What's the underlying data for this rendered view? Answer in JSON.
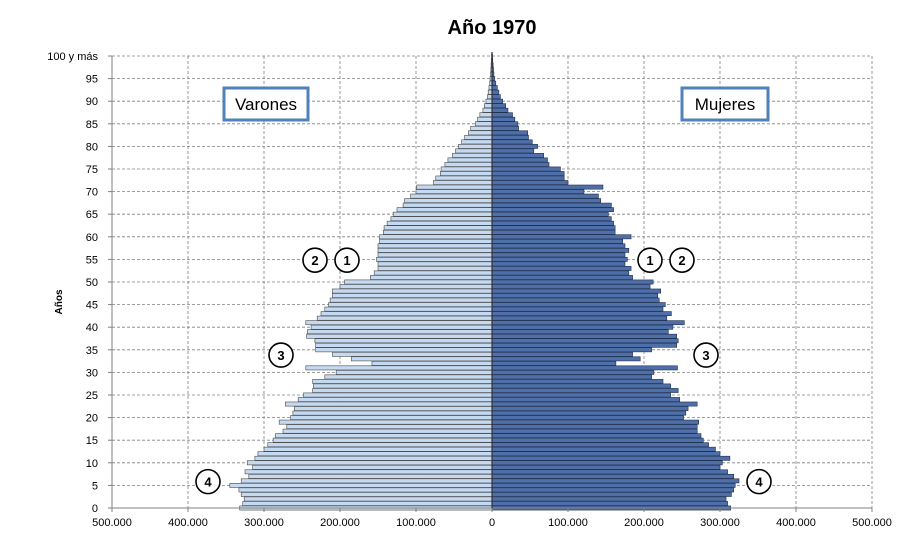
{
  "chart_data": {
    "type": "bar",
    "orientation": "horizontal-population-pyramid",
    "title": "Año 1970",
    "ylabel": "Años",
    "xlim": [
      -500000,
      500000
    ],
    "ylim": [
      0,
      100
    ],
    "grid": true,
    "x_ticks": [
      -500000,
      -400000,
      -300000,
      -200000,
      -100000,
      0,
      100000,
      200000,
      300000,
      400000,
      500000
    ],
    "x_tick_labels": [
      "500.000",
      "400.000",
      "300.000",
      "200.000",
      "100.000",
      "0",
      "100.000",
      "200.000",
      "300.000",
      "400.000",
      "500.000"
    ],
    "y_ticks": [
      0,
      5,
      10,
      15,
      20,
      25,
      30,
      35,
      40,
      45,
      50,
      55,
      60,
      65,
      70,
      75,
      80,
      85,
      90,
      95,
      100
    ],
    "y_tick_labels": [
      "0",
      "5",
      "10",
      "15",
      "20",
      "25",
      "30",
      "35",
      "40",
      "45",
      "50",
      "55",
      "60",
      "65",
      "70",
      "75",
      "80",
      "85",
      "90",
      "95",
      "100 y más"
    ],
    "ages": [
      0,
      1,
      2,
      3,
      4,
      5,
      6,
      7,
      8,
      9,
      10,
      11,
      12,
      13,
      14,
      15,
      16,
      17,
      18,
      19,
      20,
      21,
      22,
      23,
      24,
      25,
      26,
      27,
      28,
      29,
      30,
      31,
      32,
      33,
      34,
      35,
      36,
      37,
      38,
      39,
      40,
      41,
      42,
      43,
      44,
      45,
      46,
      47,
      48,
      49,
      50,
      51,
      52,
      53,
      54,
      55,
      56,
      57,
      58,
      59,
      60,
      61,
      62,
      63,
      64,
      65,
      66,
      67,
      68,
      69,
      70,
      71,
      72,
      73,
      74,
      75,
      76,
      77,
      78,
      79,
      80,
      81,
      82,
      83,
      84,
      85,
      86,
      87,
      88,
      89,
      90,
      91,
      92,
      93,
      94,
      95,
      96,
      97,
      98,
      99,
      100
    ],
    "series": [
      {
        "name": "Varones",
        "color": "#c5d9f1",
        "values": [
          332000,
          328000,
          326000,
          330000,
          333000,
          345000,
          330000,
          320000,
          325000,
          315000,
          322000,
          312000,
          308000,
          300000,
          295000,
          288000,
          285000,
          275000,
          270000,
          280000,
          265000,
          262000,
          260000,
          272000,
          255000,
          248000,
          236000,
          235000,
          236000,
          220000,
          205000,
          245000,
          158000,
          185000,
          210000,
          232000,
          232000,
          233000,
          244000,
          243000,
          238000,
          245000,
          230000,
          225000,
          220000,
          215000,
          213000,
          210000,
          210000,
          200000,
          194000,
          160000,
          155000,
          150000,
          150000,
          152000,
          150000,
          150000,
          150000,
          148000,
          148000,
          143000,
          142000,
          138000,
          133000,
          130000,
          125000,
          117000,
          115000,
          107000,
          100000,
          99000,
          77000,
          74000,
          68000,
          67000,
          62000,
          58000,
          52000,
          48000,
          44000,
          40000,
          36000,
          31000,
          28000,
          22000,
          19000,
          16000,
          12000,
          10000,
          8000,
          6000,
          5000,
          4000,
          3000,
          2500,
          2000,
          1500,
          1200,
          800,
          600
        ]
      },
      {
        "name": "Mujeres",
        "color": "#4f6fa8",
        "values": [
          314000,
          310000,
          308000,
          315000,
          318000,
          320000,
          325000,
          318000,
          310000,
          300000,
          303000,
          313000,
          300000,
          294000,
          285000,
          278000,
          275000,
          270000,
          270000,
          272000,
          252000,
          255000,
          258000,
          270000,
          247000,
          235000,
          245000,
          235000,
          225000,
          210000,
          213000,
          244000,
          163000,
          195000,
          185000,
          210000,
          243000,
          245000,
          243000,
          232000,
          238000,
          253000,
          230000,
          236000,
          225000,
          228000,
          220000,
          218000,
          222000,
          208000,
          212000,
          185000,
          180000,
          183000,
          175000,
          178000,
          175000,
          180000,
          175000,
          172000,
          183000,
          162000,
          162000,
          160000,
          157000,
          153000,
          160000,
          157000,
          143000,
          140000,
          121000,
          146000,
          100000,
          95000,
          95000,
          90000,
          75000,
          73000,
          68000,
          55000,
          60000,
          53000,
          48000,
          47000,
          35000,
          34000,
          30000,
          27000,
          21000,
          18000,
          14000,
          11000,
          9000,
          7000,
          5000,
          3500,
          2500,
          2000,
          1500,
          1000,
          700
        ]
      }
    ],
    "legend": [
      {
        "label": "Varones",
        "position": "upper-left"
      },
      {
        "label": "Mujeres",
        "position": "upper-right"
      }
    ],
    "annotations": [
      {
        "label": "2",
        "side": "left",
        "age": 55
      },
      {
        "label": "1",
        "side": "left",
        "age": 55
      },
      {
        "label": "1",
        "side": "right",
        "age": 55
      },
      {
        "label": "2",
        "side": "right",
        "age": 55
      },
      {
        "label": "3",
        "side": "left",
        "age": 34
      },
      {
        "label": "3",
        "side": "right",
        "age": 34
      },
      {
        "label": "4",
        "side": "left",
        "age": 6
      },
      {
        "label": "4",
        "side": "right",
        "age": 6
      }
    ]
  }
}
